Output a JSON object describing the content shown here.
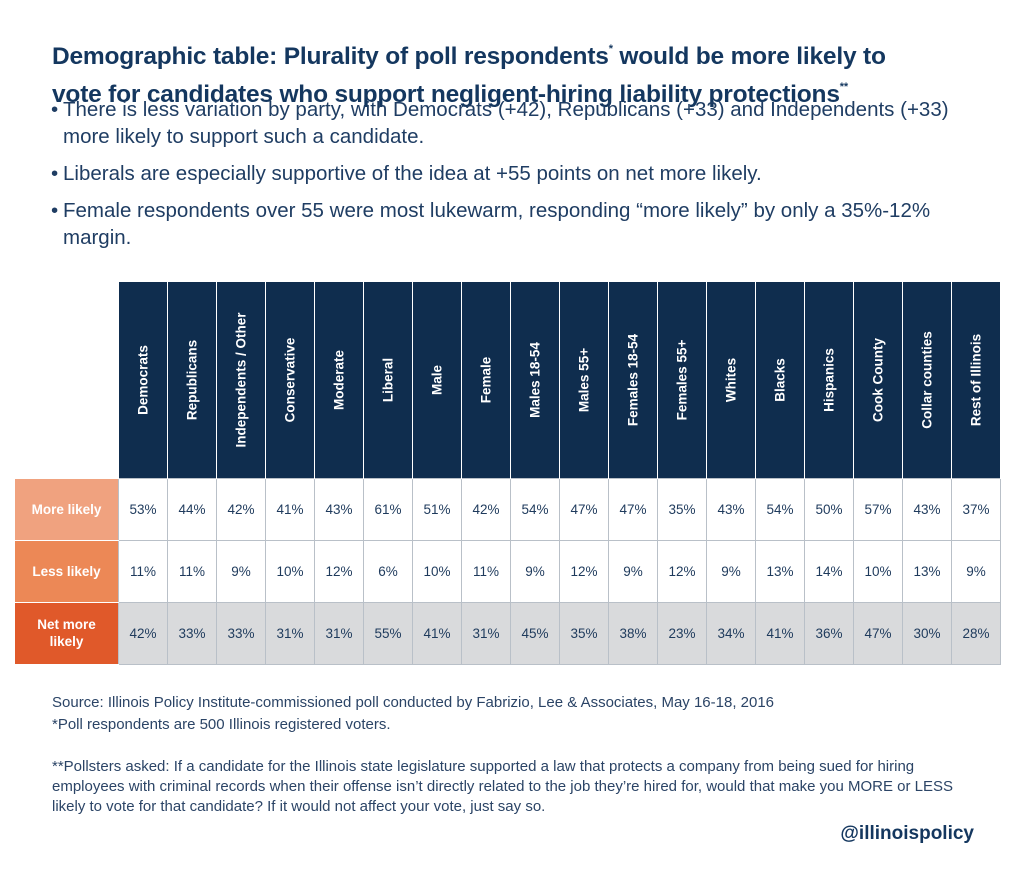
{
  "title_line1": "Demographic table: Plurality of poll respondents",
  "title_sup1": "*",
  "title_line1_tail": " would be more likely to",
  "title_line2": "vote for candidates who support negligent-hiring liability protections",
  "title_sup2": "**",
  "bullets": [
    "There is less variation by party, with Democrats (+42), Republicans (+33) and Independents (+33) more likely to support such a candidate.",
    "Liberals are especially supportive of the idea at +55 points on net more likely.",
    "Female respondents over 55 were most lukewarm, responding “more likely” by only a 35%-12% margin."
  ],
  "colors": {
    "header_navy": "#0f2d4e",
    "more_likely": "#f0a27f",
    "less_likely": "#ec8856",
    "net_more_likely": "#e0592a",
    "net_row_bg": "#d9dadc"
  },
  "chart_data": {
    "type": "table",
    "columns": [
      "Democrats",
      "Republicans",
      "Independents / Other",
      "Conservative",
      "Moderate",
      "Liberal",
      "Male",
      "Female",
      "Males 18-54",
      "Males 55+",
      "Females 18-54",
      "Females 55+",
      "Whites",
      "Blacks",
      "Hispanics",
      "Cook County",
      "Collar counties",
      "Rest of Illinois"
    ],
    "rows": [
      {
        "label": "More likely",
        "values": [
          "53%",
          "44%",
          "42%",
          "41%",
          "43%",
          "61%",
          "51%",
          "42%",
          "54%",
          "47%",
          "47%",
          "35%",
          "43%",
          "54%",
          "50%",
          "57%",
          "43%",
          "37%"
        ]
      },
      {
        "label": "Less likely",
        "values": [
          "11%",
          "11%",
          "9%",
          "10%",
          "12%",
          "6%",
          "10%",
          "11%",
          "9%",
          "12%",
          "9%",
          "12%",
          "9%",
          "13%",
          "14%",
          "10%",
          "13%",
          "9%"
        ]
      },
      {
        "label_line1": "Net more",
        "label_line2": "likely",
        "values": [
          "42%",
          "33%",
          "33%",
          "31%",
          "31%",
          "55%",
          "41%",
          "31%",
          "45%",
          "35%",
          "38%",
          "23%",
          "34%",
          "41%",
          "36%",
          "47%",
          "30%",
          "28%"
        ]
      }
    ]
  },
  "source": "Source: Illinois Policy Institute-commissioned poll conducted by Fabrizio, Lee & Associates, May 16-18, 2016",
  "footnote1": "*Poll respondents are 500 Illinois registered voters.",
  "footnote2": "**Pollsters asked: If a candidate for the Illinois state legislature supported a law that protects a company from being sued for hiring employees with criminal records when their offense isn’t directly related to the job they’re hired for, would that make you MORE or LESS likely to vote for that candidate? If it would not affect your vote, just say so.",
  "handle": "@illinoispolicy"
}
